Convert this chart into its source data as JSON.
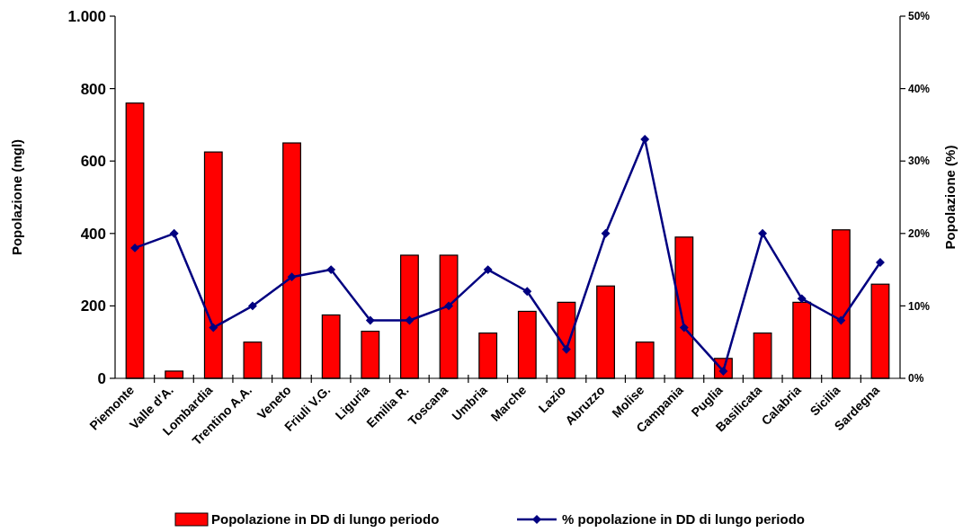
{
  "chart_data": {
    "type": "bar",
    "categories": [
      "Piemonte",
      "Valle d'A.",
      "Lombardia",
      "Trentino A.A.",
      "Veneto",
      "Friuli V.G.",
      "Liguria",
      "Emilia R.",
      "Toscana",
      "Umbria",
      "Marche",
      "Lazio",
      "Abruzzo",
      "Molise",
      "Campania",
      "Puglia",
      "Basilicata",
      "Calabria",
      "Sicilia",
      "Sardegna"
    ],
    "series": [
      {
        "name": "Popolazione in DD di lungo periodo",
        "color": "#ff0000",
        "values": [
          760,
          20,
          625,
          100,
          650,
          175,
          130,
          340,
          340,
          125,
          185,
          210,
          255,
          100,
          390,
          55,
          125,
          210,
          410,
          260
        ]
      },
      {
        "name": "% popolazione in DD di lungo periodo",
        "type": "line",
        "axis": "y2",
        "color": "#000080",
        "values": [
          18,
          20,
          7,
          10,
          14,
          15,
          8,
          8,
          10,
          15,
          12,
          4,
          20,
          33,
          7,
          1,
          20,
          11,
          8,
          16
        ]
      }
    ],
    "ylabel": "Popolazione (mgl)",
    "y2label": "Popolazione (%)",
    "ylim": [
      0,
      1000
    ],
    "yticks": [
      0,
      200,
      400,
      600,
      800,
      {
        "value": 1000,
        "label": "1.000"
      }
    ],
    "y2lim": [
      0,
      50
    ],
    "y2ticks": [
      {
        "value": 0,
        "label": "0%"
      },
      {
        "value": 10,
        "label": "10%"
      },
      {
        "value": 20,
        "label": "20%"
      },
      {
        "value": 30,
        "label": "30%"
      },
      {
        "value": 40,
        "label": "40%"
      },
      {
        "value": 50,
        "label": "50%"
      }
    ],
    "grid": false,
    "legend": "bottom",
    "marker": "diamond",
    "line_style": "solid"
  }
}
